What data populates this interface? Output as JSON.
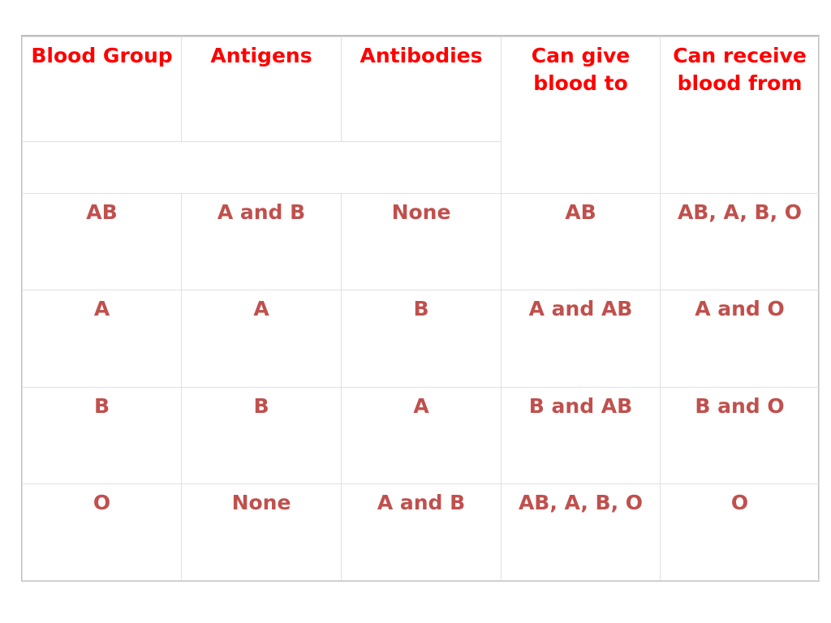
{
  "table": {
    "headers": [
      "Blood Group",
      "Antigens",
      "Antibodies",
      "Can give blood to",
      "Can receive blood from"
    ],
    "rows": [
      [
        "AB",
        "A and B",
        "None",
        "AB",
        "AB, A, B, O"
      ],
      [
        "A",
        "A",
        "B",
        "A and AB",
        "A and O"
      ],
      [
        "B",
        "B",
        "A",
        "B and AB",
        "B and O"
      ],
      [
        "O",
        "None",
        "A and B",
        "AB, A, B, O",
        "O"
      ]
    ]
  },
  "colors": {
    "header_text": "#ff0000",
    "cell_text": "#c0504d",
    "grid_line": "#e0e0e0",
    "outer_border": "#bfbfbf"
  }
}
